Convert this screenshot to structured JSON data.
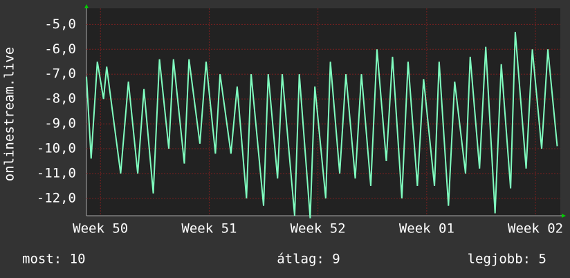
{
  "chart_data": {
    "type": "line",
    "y_label": "onlinestream.live",
    "x": [
      0,
      0.3,
      0.7,
      1.1,
      1.3,
      1.8,
      2.2,
      2.7,
      3.3,
      3.7,
      4.3,
      4.7,
      5.3,
      5.6,
      6.3,
      6.6,
      7.3,
      7.7,
      8.3,
      8.6,
      9.3,
      9.7,
      10.3,
      10.6,
      11.4,
      11.7,
      12.3,
      12.6,
      13.4,
      13.7,
      14.4,
      14.7,
      15.4,
      15.7,
      16.3,
      16.7,
      17.3,
      17.7,
      18.3,
      18.7,
      19.3,
      19.7,
      20.3,
      20.7,
      21.3,
      21.7,
      22.4,
      22.7,
      23.3,
      23.7,
      24.4,
      24.7,
      25.3,
      25.7,
      26.3,
      26.7,
      27.3,
      27.6,
      28.3,
      28.7,
      29.3,
      29.7,
      30.3
    ],
    "series": [
      {
        "name": "onlinestream.live",
        "color": "#80ffc0",
        "values": [
          -7.1,
          -10.4,
          -6.5,
          -8.0,
          -6.7,
          -9.1,
          -11.0,
          -7.3,
          -11.0,
          -7.6,
          -11.8,
          -6.4,
          -10.0,
          -6.4,
          -10.6,
          -6.4,
          -9.8,
          -6.5,
          -10.2,
          -7.0,
          -10.2,
          -7.5,
          -12.0,
          -7.0,
          -12.3,
          -7.0,
          -11.2,
          -7.0,
          -12.7,
          -7.0,
          -12.8,
          -7.5,
          -12.0,
          -6.5,
          -11.0,
          -7.0,
          -11.2,
          -7.0,
          -11.5,
          -6.0,
          -10.5,
          -6.3,
          -12.0,
          -6.5,
          -11.5,
          -7.2,
          -11.5,
          -6.5,
          -12.3,
          -7.3,
          -11.0,
          -6.3,
          -10.8,
          -5.9,
          -12.6,
          -6.6,
          -11.6,
          -5.3,
          -10.8,
          -6.0,
          -10.0,
          -6.0,
          -9.9
        ]
      }
    ],
    "xlim": [
      0,
      30.5
    ],
    "xticks": [
      {
        "value": 0.9,
        "label": "Week 50"
      },
      {
        "value": 7.9,
        "label": "Week 51"
      },
      {
        "value": 14.9,
        "label": "Week 52"
      },
      {
        "value": 21.9,
        "label": "Week 01"
      },
      {
        "value": 28.9,
        "label": "Week 02"
      }
    ],
    "ylim": [
      -12.7,
      -4.35
    ],
    "yticks": [
      {
        "value": -12,
        "label": "-12,0"
      },
      {
        "value": -11,
        "label": "-11,0"
      },
      {
        "value": -10,
        "label": "-10,0"
      },
      {
        "value": -9,
        "label": "-9,0"
      },
      {
        "value": -8,
        "label": "-8,0"
      },
      {
        "value": -7,
        "label": "-7,0"
      },
      {
        "value": -6,
        "label": "-6,0"
      },
      {
        "value": -5,
        "label": "-5,0"
      }
    ],
    "grid": true,
    "legend": [
      "most: 10",
      "átlag: 9",
      "legjobb: 5"
    ]
  }
}
